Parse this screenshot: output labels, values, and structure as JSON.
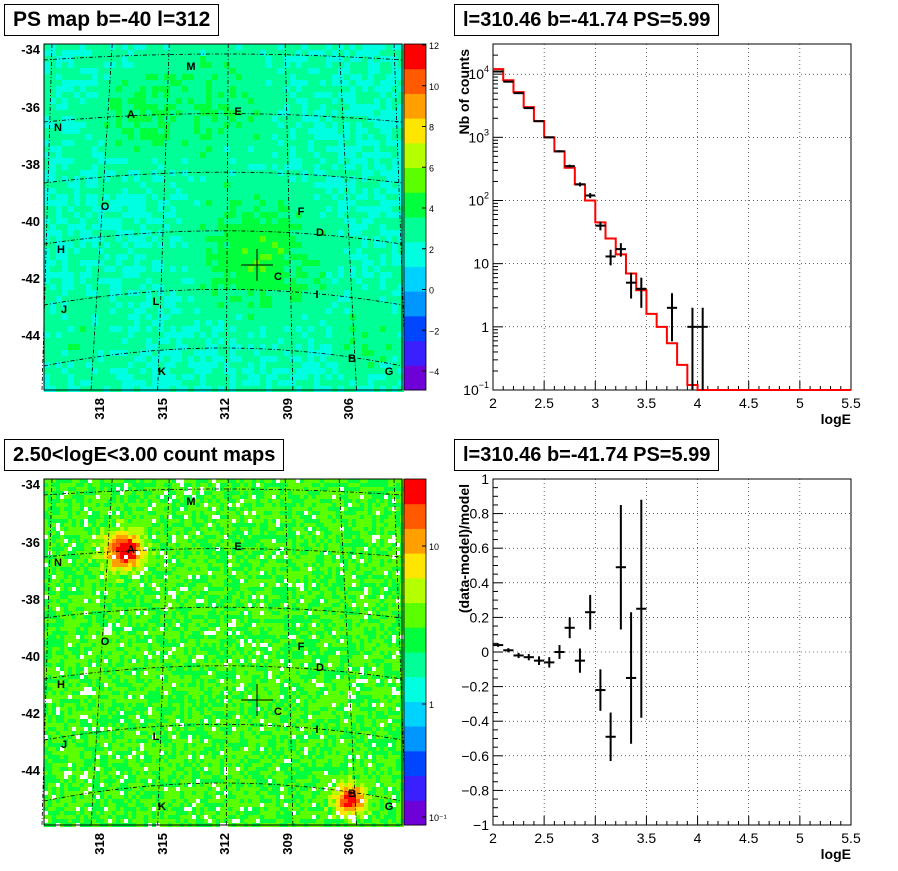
{
  "panels": {
    "tl": {
      "title": "PS map b=-40 l=312"
    },
    "tr": {
      "title": "l=310.46 b=-41.74 PS=5.99"
    },
    "bl": {
      "title": "2.50<logE<3.00 count maps"
    },
    "br": {
      "title": "l=310.46 b=-41.74 PS=5.99"
    }
  },
  "maps": {
    "lat_ticks": [
      "-34",
      "-36",
      "-38",
      "-40",
      "-42",
      "-44"
    ],
    "lon_ticks": [
      "318",
      "315",
      "312",
      "309",
      "306"
    ],
    "sources": [
      "M",
      "A",
      "E",
      "N",
      "O",
      "F",
      "D",
      "H",
      "C",
      "L",
      "I",
      "J",
      "B",
      "K",
      "G"
    ],
    "ps_colorbar": {
      "labels": [
        "12",
        "10",
        "8",
        "6",
        "4",
        "2",
        "0",
        "−2",
        "−4"
      ]
    },
    "count_colorbar": {
      "labels": [
        "10",
        "1",
        "10⁻¹"
      ]
    }
  },
  "colors": {
    "model_line": "#ff0000",
    "data": "#000000",
    "grid": "#000000"
  },
  "chart_data": [
    {
      "type": "line",
      "ylabel": "Nb of counts",
      "xlabel": "logE",
      "log_y": true,
      "xlim": [
        2,
        5.5
      ],
      "ylim": [
        0.1,
        30000
      ],
      "x_ticks": [
        "2",
        "2.5",
        "3",
        "3.5",
        "4",
        "4.5",
        "5",
        "5.5"
      ],
      "y_ticks": [
        {
          "value": 10000,
          "base": "10",
          "exp": "4"
        },
        {
          "value": 1000,
          "base": "10",
          "exp": "3"
        },
        {
          "value": 100,
          "base": "10",
          "exp": "2"
        },
        {
          "value": 10,
          "base": "10",
          "exp": ""
        },
        {
          "value": 1,
          "base": "1",
          "exp": ""
        },
        {
          "value": 0.1,
          "base": "10",
          "exp": "−1"
        }
      ],
      "model_bins_x": [
        2.0,
        2.1,
        2.2,
        2.3,
        2.4,
        2.5,
        2.6,
        2.7,
        2.8,
        2.9,
        3.0,
        3.1,
        3.2,
        3.3,
        3.4,
        3.5,
        3.6,
        3.7,
        3.8,
        3.9,
        4.0,
        5.5
      ],
      "model_values": [
        12000,
        8000,
        5200,
        3000,
        1800,
        1000,
        600,
        330,
        180,
        100,
        45,
        25,
        14,
        7,
        3.8,
        1.6,
        1.0,
        0.55,
        0.25,
        0.12,
        0.1
      ],
      "data": [
        {
          "x": 2.05,
          "y": 11000,
          "err": 105
        },
        {
          "x": 2.15,
          "y": 7600,
          "err": 87
        },
        {
          "x": 2.25,
          "y": 5000,
          "err": 70
        },
        {
          "x": 2.35,
          "y": 2900,
          "err": 54
        },
        {
          "x": 2.45,
          "y": 1800,
          "err": 42
        },
        {
          "x": 2.55,
          "y": 1000,
          "err": 32
        },
        {
          "x": 2.65,
          "y": 600,
          "err": 24
        },
        {
          "x": 2.75,
          "y": 350,
          "err": 19
        },
        {
          "x": 2.85,
          "y": 180,
          "err": 13
        },
        {
          "x": 2.95,
          "y": 120,
          "err": 11
        },
        {
          "x": 3.05,
          "y": 40,
          "err": 6.3
        },
        {
          "x": 3.15,
          "y": 13,
          "err": 3.6
        },
        {
          "x": 3.25,
          "y": 17,
          "err": 4.1
        },
        {
          "x": 3.35,
          "y": 5,
          "err": 2.2
        },
        {
          "x": 3.45,
          "y": 4,
          "err": 2
        },
        {
          "x": 3.75,
          "y": 2,
          "err": 1.41
        },
        {
          "x": 3.95,
          "y": 1,
          "err": 1
        },
        {
          "x": 4.05,
          "y": 1,
          "err": 1
        }
      ]
    },
    {
      "type": "scatter",
      "ylabel": "(data-model)/model",
      "xlabel": "logE",
      "xlim": [
        2,
        5.5
      ],
      "ylim": [
        -1,
        1
      ],
      "x_ticks": [
        "2",
        "2.5",
        "3",
        "3.5",
        "4",
        "4.5",
        "5",
        "5.5"
      ],
      "y_ticks": [
        "1",
        "0.8",
        "0.6",
        "0.4",
        "0.2",
        "0",
        "−0.2",
        "−0.4",
        "−0.6",
        "−0.8",
        "−1"
      ],
      "data": [
        {
          "x": 2.05,
          "y": 0.04,
          "err": 0.01
        },
        {
          "x": 2.15,
          "y": 0.01,
          "err": 0.012
        },
        {
          "x": 2.25,
          "y": -0.02,
          "err": 0.015
        },
        {
          "x": 2.35,
          "y": -0.03,
          "err": 0.018
        },
        {
          "x": 2.45,
          "y": -0.05,
          "err": 0.025
        },
        {
          "x": 2.55,
          "y": -0.06,
          "err": 0.03
        },
        {
          "x": 2.65,
          "y": 0.0,
          "err": 0.04
        },
        {
          "x": 2.75,
          "y": 0.14,
          "err": 0.06
        },
        {
          "x": 2.85,
          "y": -0.05,
          "err": 0.07
        },
        {
          "x": 2.95,
          "y": 0.23,
          "err": 0.1
        },
        {
          "x": 3.05,
          "y": -0.22,
          "err": 0.12
        },
        {
          "x": 3.15,
          "y": -0.49,
          "err": 0.14
        },
        {
          "x": 3.25,
          "y": 0.49,
          "err": 0.36
        },
        {
          "x": 3.35,
          "y": -0.15,
          "err": 0.38
        },
        {
          "x": 3.45,
          "y": 0.25,
          "err": 0.63
        }
      ]
    }
  ]
}
